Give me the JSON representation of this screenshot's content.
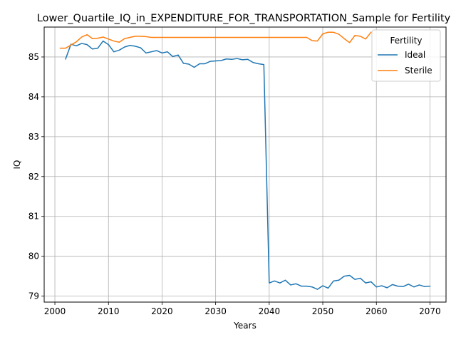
{
  "chart_data": {
    "type": "line",
    "title": "Lower_Quartile_IQ_in_EXPENDITURE_FOR_TRANSPORTATION_Sample for Fertility",
    "xlabel": "Years",
    "ylabel": "IQ",
    "xlim": [
      1998,
      2073
    ],
    "ylim": [
      78.85,
      85.75
    ],
    "xticks": [
      2000,
      2010,
      2020,
      2030,
      2040,
      2050,
      2060,
      2070
    ],
    "yticks": [
      79,
      80,
      81,
      82,
      83,
      84,
      85
    ],
    "grid": true,
    "legend": {
      "title": "Fertility",
      "placement": "top-right"
    },
    "series": [
      {
        "name": "Ideal",
        "color": "#1f77b4",
        "x": [
          2002,
          2003,
          2004,
          2005,
          2006,
          2007,
          2008,
          2009,
          2010,
          2011,
          2012,
          2013,
          2014,
          2015,
          2016,
          2017,
          2018,
          2019,
          2020,
          2021,
          2022,
          2023,
          2024,
          2025,
          2026,
          2027,
          2028,
          2029,
          2030,
          2031,
          2032,
          2033,
          2034,
          2035,
          2036,
          2037,
          2038,
          2039,
          2040,
          2041,
          2042,
          2043,
          2044,
          2045,
          2046,
          2047,
          2048,
          2049,
          2050,
          2051,
          2052,
          2053,
          2054,
          2055,
          2056,
          2057,
          2058,
          2059,
          2060,
          2061,
          2062,
          2063,
          2064,
          2065,
          2066,
          2067,
          2068,
          2069,
          2070
        ],
        "values": [
          84.95,
          85.32,
          85.28,
          85.34,
          85.31,
          85.2,
          85.22,
          85.4,
          85.31,
          85.13,
          85.17,
          85.25,
          85.29,
          85.27,
          85.23,
          85.1,
          85.13,
          85.16,
          85.1,
          85.13,
          85.01,
          85.05,
          84.84,
          84.82,
          84.74,
          84.83,
          84.83,
          84.89,
          84.9,
          84.91,
          84.95,
          84.94,
          84.96,
          84.93,
          84.94,
          84.86,
          84.83,
          84.81,
          79.33,
          79.38,
          79.33,
          79.4,
          79.28,
          79.31,
          79.25,
          79.25,
          79.23,
          79.17,
          79.26,
          79.2,
          79.38,
          79.4,
          79.5,
          79.52,
          79.42,
          79.45,
          79.33,
          79.36,
          79.23,
          79.26,
          79.21,
          79.29,
          79.25,
          79.24,
          79.3,
          79.23,
          79.28,
          79.24,
          79.25
        ]
      },
      {
        "name": "Sterile",
        "color": "#ff7f0e",
        "x": [
          2001,
          2002,
          2003,
          2004,
          2005,
          2006,
          2007,
          2008,
          2009,
          2010,
          2011,
          2012,
          2013,
          2014,
          2015,
          2016,
          2017,
          2018,
          2019,
          2020,
          2021,
          2022,
          2023,
          2024,
          2025,
          2026,
          2027,
          2028,
          2029,
          2030,
          2031,
          2032,
          2033,
          2034,
          2035,
          2036,
          2037,
          2038,
          2039,
          2040,
          2041,
          2042,
          2043,
          2044,
          2045,
          2046,
          2047,
          2048,
          2049,
          2050,
          2051,
          2052,
          2053,
          2054,
          2055,
          2056,
          2057,
          2058,
          2059
        ],
        "values": [
          85.22,
          85.22,
          85.3,
          85.38,
          85.5,
          85.56,
          85.46,
          85.47,
          85.5,
          85.45,
          85.4,
          85.37,
          85.46,
          85.49,
          85.52,
          85.52,
          85.51,
          85.49,
          85.49,
          85.49,
          85.49,
          85.49,
          85.49,
          85.49,
          85.49,
          85.49,
          85.49,
          85.49,
          85.49,
          85.49,
          85.49,
          85.49,
          85.49,
          85.49,
          85.49,
          85.49,
          85.49,
          85.49,
          85.49,
          85.49,
          85.49,
          85.49,
          85.49,
          85.49,
          85.49,
          85.49,
          85.49,
          85.41,
          85.4,
          85.58,
          85.62,
          85.62,
          85.57,
          85.46,
          85.36,
          85.54,
          85.52,
          85.45,
          85.62
        ]
      }
    ]
  }
}
